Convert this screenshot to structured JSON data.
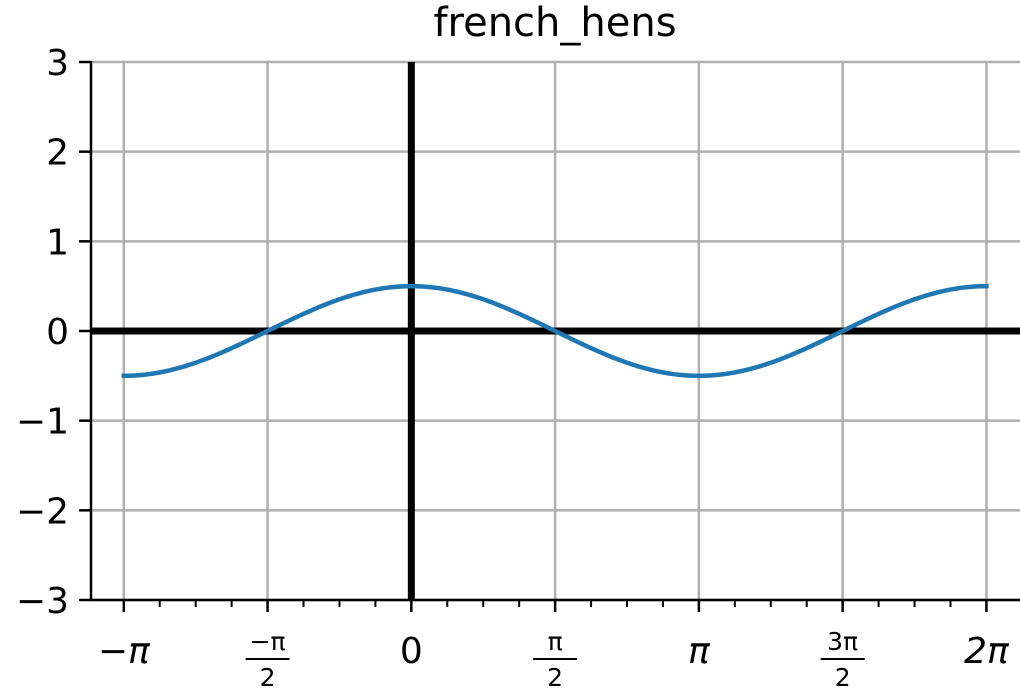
{
  "chart_data": {
    "type": "line",
    "title": "french_hens",
    "xlabel": "",
    "ylabel": "",
    "xlim": [
      -3.5,
      6.65
    ],
    "ylim": [
      -3,
      3
    ],
    "grid": true,
    "function": "0.5*cos(x)",
    "series": [
      {
        "color": "#1f77b4",
        "x_range": [
          -3.14159,
          6.28319
        ],
        "points": [
          [
            -3.1416,
            -0.5
          ],
          [
            -2.3562,
            -0.3536
          ],
          [
            -1.5708,
            0.0
          ],
          [
            -0.7854,
            0.3536
          ],
          [
            0.0,
            0.5
          ],
          [
            0.7854,
            0.3536
          ],
          [
            1.5708,
            0.0
          ],
          [
            2.3562,
            -0.3536
          ],
          [
            3.1416,
            -0.5
          ],
          [
            3.927,
            -0.3536
          ],
          [
            4.7124,
            0.0
          ],
          [
            5.4978,
            0.3536
          ],
          [
            6.2832,
            0.5
          ]
        ]
      }
    ],
    "yticks": [
      {
        "value": -3,
        "label": "−3"
      },
      {
        "value": -2,
        "label": "−2"
      },
      {
        "value": -1,
        "label": "−1"
      },
      {
        "value": 0,
        "label": "0"
      },
      {
        "value": 1,
        "label": "1"
      },
      {
        "value": 2,
        "label": "2"
      },
      {
        "value": 3,
        "label": "3"
      }
    ],
    "xticks": [
      {
        "value": -3.14159,
        "label": "−π"
      },
      {
        "value": -1.5708,
        "num": "−π",
        "den": "2"
      },
      {
        "value": 0,
        "label": "0"
      },
      {
        "value": 1.5708,
        "num": "π",
        "den": "2"
      },
      {
        "value": 3.14159,
        "label": "π"
      },
      {
        "value": 4.71239,
        "num": "3π",
        "den": "2"
      },
      {
        "value": 6.28319,
        "label": "2π"
      }
    ],
    "axis_lines": {
      "x": 0,
      "y": 0,
      "color": "#000000"
    },
    "grid_color": "#b0b0b0"
  }
}
